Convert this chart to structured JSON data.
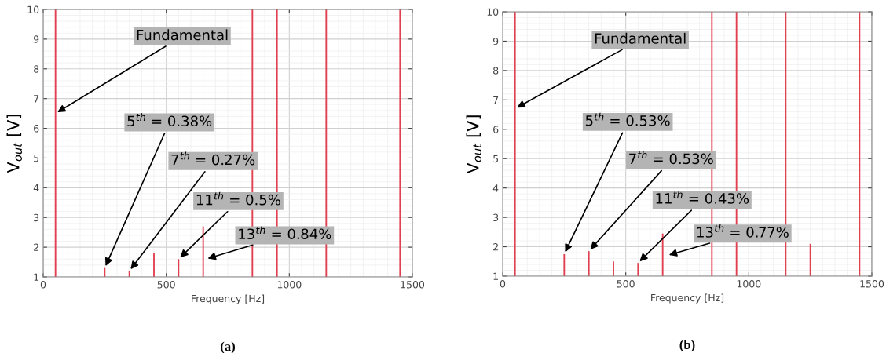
{
  "chart_data": [
    {
      "type": "bar",
      "title": "(a)",
      "xlabel": "Frequency [Hz]",
      "ylabel": "V$_{out}$ [V]",
      "x": [
        50,
        250,
        350,
        450,
        550,
        650,
        850,
        950,
        1150,
        1450
      ],
      "values": [
        10,
        1.3,
        1.2,
        1.8,
        1.6,
        2.7,
        10,
        10,
        10,
        10
      ],
      "color": "#e04050",
      "xlim": [
        0,
        1500
      ],
      "ylim": [
        1,
        10
      ],
      "xticks": [
        0,
        500,
        1000,
        1500
      ],
      "yticks": [
        1,
        2,
        3,
        4,
        5,
        6,
        7,
        8,
        9,
        10
      ],
      "grid": true,
      "annotations": [
        {
          "text": "Fundamental",
          "x": 50,
          "y": 6.5
        },
        {
          "text": "5$^{th}$ = 0.38%",
          "x": 250,
          "y": 1.3
        },
        {
          "text": "7$^{th}$ = 0.27%",
          "x": 350,
          "y": 1.2
        },
        {
          "text": "11$^{th}$ = 0.5%",
          "x": 550,
          "y": 1.6
        },
        {
          "text": "13$^{th}$ = 0.84%",
          "x": 660,
          "y": 1.6
        }
      ]
    },
    {
      "type": "bar",
      "title": "(b)",
      "xlabel": "Frequency [Hz]",
      "ylabel": "V$_{out}$ [V]",
      "x": [
        50,
        250,
        350,
        450,
        550,
        650,
        850,
        950,
        1150,
        1250,
        1450
      ],
      "values": [
        10,
        1.75,
        1.85,
        1.5,
        1.45,
        2.45,
        10,
        10,
        10,
        2.1,
        10
      ],
      "color": "#e04050",
      "xlim": [
        0,
        1500
      ],
      "ylim": [
        1,
        10
      ],
      "xticks": [
        0,
        500,
        1000,
        1500
      ],
      "yticks": [
        1,
        2,
        3,
        4,
        5,
        6,
        7,
        8,
        9,
        10
      ],
      "grid": true,
      "annotations": [
        {
          "text": "Fundamental",
          "x": 50,
          "y": 6.7
        },
        {
          "text": "5$^{th}$ = 0.53%",
          "x": 250,
          "y": 1.75
        },
        {
          "text": "7$^{th}$ = 0.53%",
          "x": 350,
          "y": 1.85
        },
        {
          "text": "11$^{th}$ = 0.43%",
          "x": 550,
          "y": 1.45
        },
        {
          "text": "13$^{th}$ = 0.77%",
          "x": 667,
          "y": 1.7
        }
      ]
    }
  ]
}
